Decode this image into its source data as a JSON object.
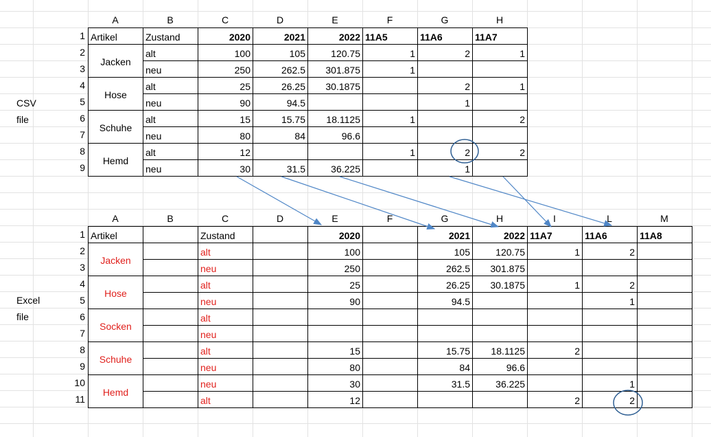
{
  "csv": {
    "caption": [
      "CSV",
      "file"
    ],
    "letters": [
      "A",
      "B",
      "C",
      "D",
      "E",
      "F",
      "G",
      "H"
    ],
    "row_numbers": [
      1,
      2,
      3,
      4,
      5,
      6,
      7,
      8,
      9
    ],
    "header": [
      "Artikel",
      "Zustand",
      2020,
      2021,
      2022,
      "11A5",
      "11A6",
      "11A7"
    ],
    "groups": [
      {
        "name": "Jacken",
        "rows": [
          [
            "alt",
            100,
            105,
            120.75,
            1,
            2,
            1
          ],
          [
            "neu",
            250,
            262.5,
            301.875,
            1,
            null,
            null
          ]
        ]
      },
      {
        "name": "Hose",
        "rows": [
          [
            "alt",
            25,
            26.25,
            30.1875,
            null,
            2,
            1
          ],
          [
            "neu",
            90,
            94.5,
            null,
            null,
            1,
            null
          ]
        ]
      },
      {
        "name": "Schuhe",
        "rows": [
          [
            "alt",
            15,
            15.75,
            18.1125,
            1,
            null,
            2
          ],
          [
            "neu",
            80,
            84,
            96.6,
            null,
            null,
            null
          ]
        ]
      },
      {
        "name": "Hemd",
        "rows": [
          [
            "alt",
            12,
            null,
            null,
            1,
            2,
            2
          ],
          [
            "neu",
            30,
            31.5,
            36.225,
            null,
            1,
            null
          ]
        ]
      }
    ]
  },
  "excel": {
    "caption": [
      "Excel",
      "file"
    ],
    "text_color": "#e0201c",
    "letters": [
      "A",
      "B",
      "C",
      "D",
      "E",
      "F",
      "G",
      "H",
      "I",
      "L",
      "M"
    ],
    "row_numbers": [
      1,
      2,
      3,
      4,
      5,
      6,
      7,
      8,
      9,
      10,
      11
    ],
    "header": [
      "Artikel",
      null,
      "Zustand",
      null,
      2020,
      null,
      2021,
      2022,
      "11A7",
      "11A6",
      "11A8"
    ],
    "groups": [
      {
        "name": "Jacken",
        "rows": [
          [
            null,
            "alt",
            null,
            100,
            null,
            105,
            120.75,
            1,
            2,
            null
          ],
          [
            null,
            "neu",
            null,
            250,
            null,
            262.5,
            301.875,
            null,
            null,
            null
          ]
        ]
      },
      {
        "name": "Hose",
        "rows": [
          [
            null,
            "alt",
            null,
            25,
            null,
            26.25,
            30.1875,
            1,
            2,
            null
          ],
          [
            null,
            "neu",
            null,
            90,
            null,
            94.5,
            null,
            null,
            1,
            null
          ]
        ]
      },
      {
        "name": "Socken",
        "rows": [
          [
            null,
            "alt",
            null,
            null,
            null,
            null,
            null,
            null,
            null,
            null
          ],
          [
            null,
            "neu",
            null,
            null,
            null,
            null,
            null,
            null,
            null,
            null
          ]
        ]
      },
      {
        "name": "Schuhe",
        "rows": [
          [
            null,
            "alt",
            null,
            15,
            null,
            15.75,
            18.1125,
            2,
            null,
            null
          ],
          [
            null,
            "neu",
            null,
            80,
            null,
            84,
            96.6,
            null,
            null,
            null
          ]
        ]
      },
      {
        "name": "Hemd",
        "rows": [
          [
            null,
            "neu",
            null,
            30,
            null,
            31.5,
            36.225,
            null,
            1,
            null
          ],
          [
            null,
            "alt",
            null,
            12,
            null,
            null,
            null,
            2,
            2,
            null
          ]
        ]
      }
    ]
  }
}
